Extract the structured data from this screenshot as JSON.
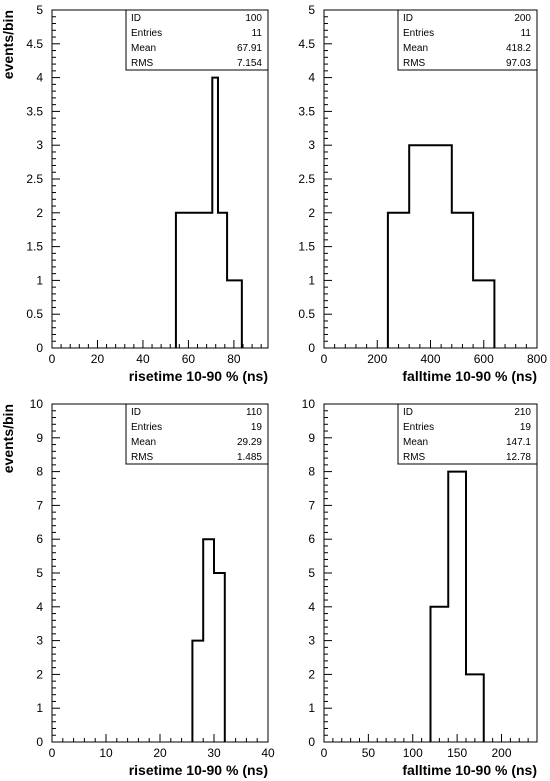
{
  "chart_data": [
    {
      "type": "bar",
      "xlabel": "risetime 10-90 % (ns)",
      "ylabel": "events/bin",
      "xlim": [
        0,
        95
      ],
      "ylim": [
        0,
        5
      ],
      "xticks": [
        0,
        20,
        40,
        60,
        80
      ],
      "yticks": [
        0,
        0.5,
        1,
        1.5,
        2,
        2.5,
        3,
        3.5,
        4,
        4.5,
        5
      ],
      "bins": [
        {
          "x0": 54.5,
          "x1": 62.5,
          "count": 2
        },
        {
          "x0": 62.5,
          "x1": 70.5,
          "count": 2
        },
        {
          "x0": 70.5,
          "x1": 73.0,
          "count": 4
        },
        {
          "x0": 73.0,
          "x1": 77.0,
          "count": 2
        },
        {
          "x0": 77.0,
          "x1": 83.5,
          "count": 1
        }
      ],
      "stats": {
        "ID": "100",
        "Entries": "11",
        "Mean": "67.91",
        "RMS": "7.154"
      }
    },
    {
      "type": "bar",
      "xlabel": "falltime 10-90 % (ns)",
      "ylabel": "",
      "xlim": [
        0,
        800
      ],
      "ylim": [
        0,
        5
      ],
      "xticks": [
        0,
        200,
        400,
        600,
        800
      ],
      "yticks": [
        0,
        0.5,
        1,
        1.5,
        2,
        2.5,
        3,
        3.5,
        4,
        4.5,
        5
      ],
      "bins": [
        {
          "x0": 240,
          "x1": 320,
          "count": 2
        },
        {
          "x0": 320,
          "x1": 480,
          "count": 3
        },
        {
          "x0": 480,
          "x1": 560,
          "count": 2
        },
        {
          "x0": 560,
          "x1": 640,
          "count": 1
        }
      ],
      "stats": {
        "ID": "200",
        "Entries": "11",
        "Mean": "418.2",
        "RMS": "97.03"
      }
    },
    {
      "type": "bar",
      "xlabel": "risetime 10-90 % (ns)",
      "ylabel": "events/bin",
      "xlim": [
        0,
        40
      ],
      "ylim": [
        0,
        10
      ],
      "xticks": [
        0,
        10,
        20,
        30,
        40
      ],
      "yticks": [
        0,
        1,
        2,
        3,
        4,
        5,
        6,
        7,
        8,
        9,
        10
      ],
      "bins": [
        {
          "x0": 26,
          "x1": 28,
          "count": 3
        },
        {
          "x0": 28,
          "x1": 30,
          "count": 6
        },
        {
          "x0": 30,
          "x1": 32,
          "count": 5
        }
      ],
      "stats": {
        "ID": "110",
        "Entries": "19",
        "Mean": "29.29",
        "RMS": "1.485"
      }
    },
    {
      "type": "bar",
      "xlabel": "falltime 10-90 % (ns)",
      "ylabel": "",
      "xlim": [
        0,
        240
      ],
      "ylim": [
        0,
        10
      ],
      "xticks": [
        0,
        50,
        100,
        150,
        200
      ],
      "yticks": [
        0,
        1,
        2,
        3,
        4,
        5,
        6,
        7,
        8,
        9,
        10
      ],
      "bins": [
        {
          "x0": 120,
          "x1": 140,
          "count": 4
        },
        {
          "x0": 140,
          "x1": 160,
          "count": 8
        },
        {
          "x0": 160,
          "x1": 180,
          "count": 2
        }
      ],
      "stats": {
        "ID": "210",
        "Entries": "19",
        "Mean": "147.1",
        "RMS": "12.78"
      }
    }
  ]
}
